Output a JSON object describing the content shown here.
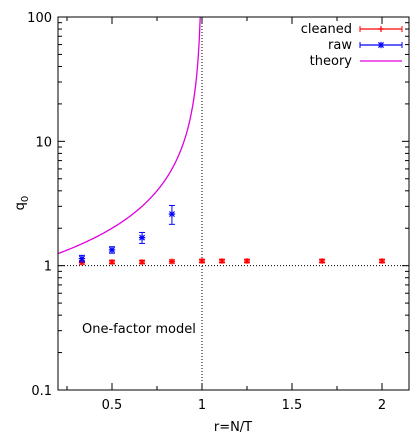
{
  "chart_data": {
    "type": "scatter",
    "title": "",
    "xlabel": "r=N/T",
    "ylabel": "q",
    "ylabel_sub": "0",
    "xlim": [
      0.2,
      2.15
    ],
    "ylim": [
      0.1,
      100
    ],
    "yscale": "log",
    "grid": false,
    "legend_position": "top-right",
    "annotation": "One-factor model",
    "x_ticks": [
      0.5,
      1,
      1.5,
      2
    ],
    "x_tick_labels": [
      "0.5",
      "1",
      "1.5",
      "2"
    ],
    "y_ticks": [
      0.1,
      1,
      10,
      100
    ],
    "y_tick_labels": [
      "0.1",
      "1",
      "10",
      "100"
    ],
    "reference_lines": {
      "x": 1,
      "y": 1
    },
    "series": [
      {
        "name": "cleaned",
        "color": "#ff0000",
        "marker": "plus",
        "points": [
          {
            "x": 0.333,
            "y": 1.06,
            "err": 0.03
          },
          {
            "x": 0.5,
            "y": 1.07,
            "err": 0.03
          },
          {
            "x": 0.667,
            "y": 1.07,
            "err": 0.03
          },
          {
            "x": 0.833,
            "y": 1.08,
            "err": 0.03
          },
          {
            "x": 1.0,
            "y": 1.09,
            "err": 0.03
          },
          {
            "x": 1.111,
            "y": 1.09,
            "err": 0.03
          },
          {
            "x": 1.25,
            "y": 1.09,
            "err": 0.03
          },
          {
            "x": 1.667,
            "y": 1.09,
            "err": 0.03
          },
          {
            "x": 2.0,
            "y": 1.09,
            "err": 0.03
          }
        ]
      },
      {
        "name": "raw",
        "color": "#0000ff",
        "marker": "star",
        "points": [
          {
            "x": 0.333,
            "y": 1.14,
            "err": 0.07
          },
          {
            "x": 0.5,
            "y": 1.34,
            "err": 0.08
          },
          {
            "x": 0.667,
            "y": 1.68,
            "err": 0.17
          },
          {
            "x": 0.833,
            "y": 2.6,
            "err": 0.45
          }
        ]
      },
      {
        "name": "theory",
        "color": "#e000e0",
        "marker": "line",
        "formula": "1/(1-r)"
      }
    ]
  }
}
